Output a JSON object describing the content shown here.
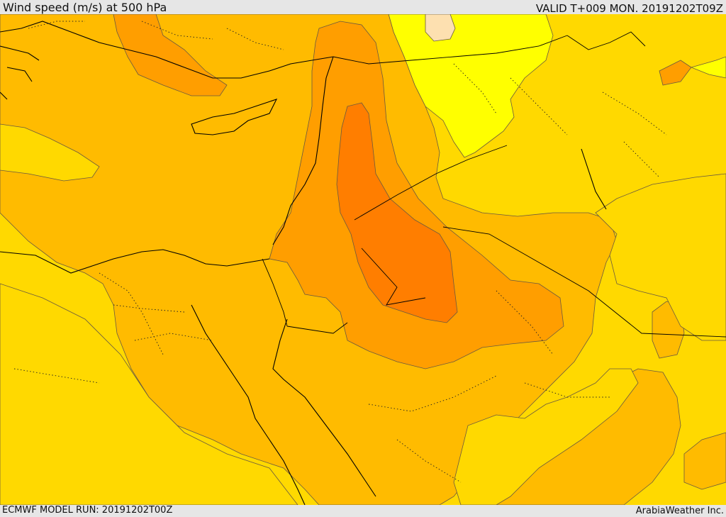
{
  "header": {
    "title": "Wind speed (m/s) at 500 hPa",
    "valid": "VALID T+009 MON. 20191202T09Z"
  },
  "footer": {
    "model_run": "ECMWF MODEL RUN: 20191202T00Z",
    "credit": "ArabiaWeather Inc."
  },
  "map": {
    "variable": "wind speed",
    "level": "500 hPa",
    "units": "m/s",
    "colors": {
      "very_light": "#fde0b0",
      "light": "#ffff00",
      "base": "#ffd900",
      "medium": "#ffbb00",
      "strong": "#ff9e00",
      "strongest": "#ff7e00"
    }
  }
}
